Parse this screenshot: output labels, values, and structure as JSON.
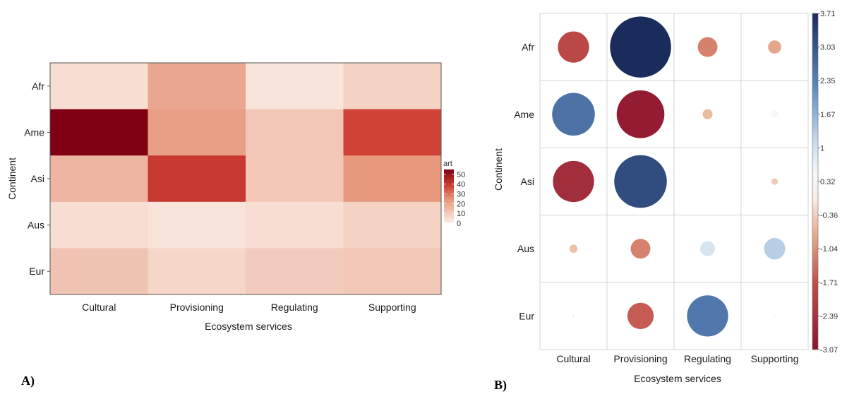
{
  "panels": [
    {
      "label": "A)"
    },
    {
      "label": "B)"
    }
  ],
  "chart_data": [
    {
      "type": "heatmap",
      "panel": "A)",
      "title": "",
      "xlabel": "Ecosystem services",
      "ylabel": "Continent",
      "x": [
        "Cultural",
        "Provisioning",
        "Regulating",
        "Supporting"
      ],
      "y": [
        "Afr",
        "Ame",
        "Asi",
        "Aus",
        "Eur"
      ],
      "values": [
        [
          5,
          20,
          3,
          8
        ],
        [
          55,
          22,
          11,
          38
        ],
        [
          16,
          40,
          11,
          24
        ],
        [
          5,
          3,
          5,
          8
        ],
        [
          12,
          7,
          10,
          11
        ]
      ],
      "legend": {
        "title": "art",
        "ticks": [
          0,
          10,
          20,
          30,
          40,
          50
        ],
        "range": [
          0,
          55
        ],
        "low_color": "#fbefe8",
        "mid_color": "#e08a6c",
        "high_color": "#7f0012",
        "placement": "right"
      }
    },
    {
      "type": "heatmap",
      "subtype": "bubble-correlation",
      "panel": "B)",
      "title": "",
      "xlabel": "Ecosystem services",
      "ylabel": "Continent",
      "x": [
        "Cultural",
        "Provisioning",
        "Regulating",
        "Supporting"
      ],
      "y": [
        "Afr",
        "Ame",
        "Asi",
        "Aus",
        "Eur"
      ],
      "values": [
        [
          -1.9,
          3.71,
          -1.2,
          -0.8
        ],
        [
          2.6,
          -2.9,
          -0.6,
          0.45
        ],
        [
          -2.5,
          3.2,
          0.0,
          -0.4
        ],
        [
          -0.5,
          -1.2,
          0.9,
          1.3
        ],
        [
          0.15,
          -1.6,
          2.5,
          0.1
        ]
      ],
      "legend": {
        "ticks": [
          "3.71",
          "3.03",
          "2.35",
          "1.67",
          "1",
          "0.32",
          "-0.36",
          "-1.04",
          "-1.71",
          "-2.39",
          "-3.07"
        ],
        "range": [
          -3.07,
          3.71
        ],
        "colors": [
          "#67001f",
          "#b2182b",
          "#d6604d",
          "#f4a582",
          "#fddbc7",
          "#f7f7f7",
          "#d1e5f0",
          "#92c5de",
          "#4393c3",
          "#2166ac",
          "#1a2f5e"
        ],
        "placement": "right"
      }
    }
  ]
}
